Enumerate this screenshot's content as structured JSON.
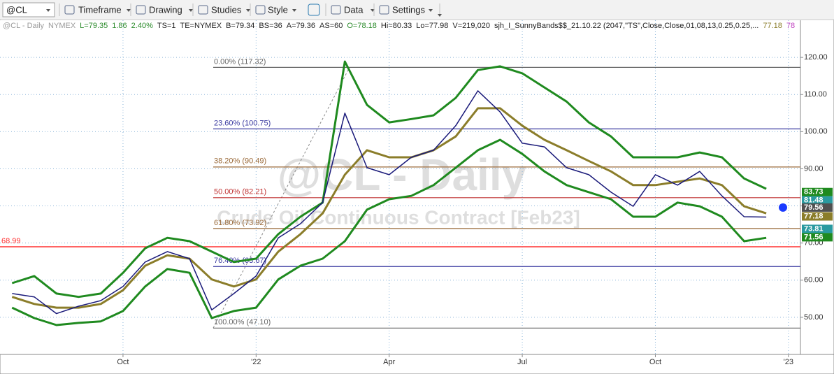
{
  "toolbar": {
    "symbol": "@CL",
    "buttons": [
      "Timeframe",
      "Drawing",
      "Studies",
      "Style",
      "Data",
      "Settings"
    ]
  },
  "info_bar": [
    {
      "text": "@CL - Daily",
      "color": "#9a9a9a"
    },
    {
      "text": "NYMEX",
      "color": "#9a9a9a"
    },
    {
      "text": "L=79.35",
      "color": "#2a8a2a"
    },
    {
      "text": "1.86",
      "color": "#2a8a2a"
    },
    {
      "text": "2.40%",
      "color": "#2a8a2a"
    },
    {
      "text": "TS=1",
      "color": "#222222"
    },
    {
      "text": "TE=NYMEX",
      "color": "#222222"
    },
    {
      "text": "B=79.34",
      "color": "#222222"
    },
    {
      "text": "BS=36",
      "color": "#222222"
    },
    {
      "text": "A=79.36",
      "color": "#222222"
    },
    {
      "text": "AS=60",
      "color": "#222222"
    },
    {
      "text": "O=78.18",
      "color": "#2a8a2a"
    },
    {
      "text": "Hi=80.33",
      "color": "#222222"
    },
    {
      "text": "Lo=77.98",
      "color": "#222222"
    },
    {
      "text": "V=219,020",
      "color": "#222222"
    },
    {
      "text": "sjh_I_SunnyBands$$_21.10.22 (2047,\"TS\",Close,Close,01,08,13,0.25,0.25,...",
      "color": "#222222"
    },
    {
      "text": "77.18",
      "color": "#8b7d2a"
    },
    {
      "text": "78",
      "color": "#c040c0"
    }
  ],
  "chart_data": {
    "type": "line",
    "title": "@CL - Daily",
    "subtitle": "Crude Oil Continuous Contract [Feb23]",
    "categories": [
      null,
      null,
      null,
      null,
      null,
      "Oct",
      null,
      null,
      null,
      null,
      null,
      "'22",
      null,
      null,
      null,
      null,
      null,
      "Apr",
      null,
      null,
      null,
      null,
      null,
      "Jul",
      null,
      null,
      null,
      null,
      null,
      "Oct",
      null,
      null,
      null,
      null,
      null,
      "'23"
    ],
    "series": [
      {
        "color": "#1f8a1f",
        "width": 3,
        "values": [
          59.2,
          61.1,
          56.4,
          55.5,
          56.4,
          62.0,
          68.6,
          71.4,
          70.5,
          67.7,
          64.9,
          65.8,
          72.4,
          77.1,
          80.9,
          118.9,
          107.2,
          102.5,
          103.4,
          104.4,
          109.1,
          116.6,
          117.6,
          115.7,
          111.9,
          108.1,
          102.5,
          98.7,
          93.1,
          93.1,
          93.1,
          94.4,
          93.1,
          87.4,
          84.6,
          null
        ]
      },
      {
        "color": "#1f8a1f",
        "width": 3,
        "values": [
          52.6,
          49.8,
          47.9,
          48.5,
          48.9,
          51.7,
          58.3,
          63.0,
          62.0,
          49.8,
          51.7,
          52.6,
          60.2,
          63.9,
          65.8,
          70.5,
          79.0,
          81.8,
          82.7,
          85.6,
          90.3,
          95.0,
          97.8,
          94.0,
          89.3,
          85.6,
          83.7,
          81.8,
          77.1,
          77.1,
          80.9,
          79.9,
          77.1,
          70.5,
          71.4,
          null
        ]
      },
      {
        "color": "#8b7d2a",
        "width": 3,
        "values": [
          55.5,
          53.6,
          52.6,
          52.6,
          53.6,
          57.3,
          63.9,
          66.7,
          65.8,
          60.2,
          58.3,
          60.2,
          67.7,
          72.4,
          78.0,
          88.4,
          95.0,
          93.1,
          93.1,
          95.0,
          98.7,
          106.3,
          106.3,
          101.6,
          97.8,
          95.0,
          92.1,
          89.3,
          85.6,
          85.6,
          86.5,
          87.4,
          85.6,
          79.9,
          78.0,
          null
        ]
      },
      {
        "color": "#1a1a7a",
        "width": 1.5,
        "values": [
          56.4,
          55.5,
          51.0,
          53.0,
          54.5,
          58.3,
          64.9,
          67.7,
          65.8,
          52.0,
          56.4,
          61.1,
          71.4,
          75.2,
          80.9,
          105.0,
          90.3,
          88.4,
          93.1,
          95.0,
          101.6,
          111.0,
          105.3,
          96.9,
          95.9,
          90.3,
          88.4,
          83.7,
          79.9,
          88.4,
          85.6,
          89.3,
          82.7,
          77.1,
          77.0,
          null
        ]
      }
    ],
    "ylim": [
      40,
      130
    ],
    "yticks": [
      {
        "value": 50,
        "label": "50.00"
      },
      {
        "value": 60,
        "label": "60.00"
      },
      {
        "value": 70,
        "label": "70.00"
      },
      {
        "value": 80,
        "label": "80.00"
      },
      {
        "value": 90,
        "label": "90.00"
      },
      {
        "value": 100,
        "label": "100.00"
      },
      {
        "value": 110,
        "label": "110.00"
      },
      {
        "value": 120,
        "label": "120.00"
      }
    ],
    "grid": true,
    "fib_levels": [
      {
        "label": "0.00% (117.32)",
        "value": 117.32,
        "color": "#666666"
      },
      {
        "label": "23.60% (100.75)",
        "value": 100.75,
        "color": "#3a3aa0"
      },
      {
        "label": "38.20% (90.49)",
        "value": 90.49,
        "color": "#9a6a3a"
      },
      {
        "label": "50.00% (82.21)",
        "value": 82.21,
        "color": "#c03030"
      },
      {
        "label": "61.80% (73.92)",
        "value": 73.92,
        "color": "#9a6a3a"
      },
      {
        "label": "76.40% (63.67)",
        "value": 63.67,
        "color": "#3a3aa0"
      },
      {
        "label": "100.00% (47.10)",
        "value": 47.1,
        "color": "#666666"
      }
    ],
    "ref_line": {
      "value": 68.99,
      "color": "#ff3030"
    },
    "price_labels": [
      {
        "value": 83.73,
        "color": "#1f8a1f"
      },
      {
        "value": 81.48,
        "color": "#2a9aa0"
      },
      {
        "value": 79.56,
        "color": "#505050",
        "marker": "#1a3aff"
      },
      {
        "value": 77.18,
        "color": "#8b7d2a"
      },
      {
        "value": 73.81,
        "color": "#2a9aa0"
      },
      {
        "value": 71.56,
        "color": "#1f8a1f"
      }
    ]
  }
}
